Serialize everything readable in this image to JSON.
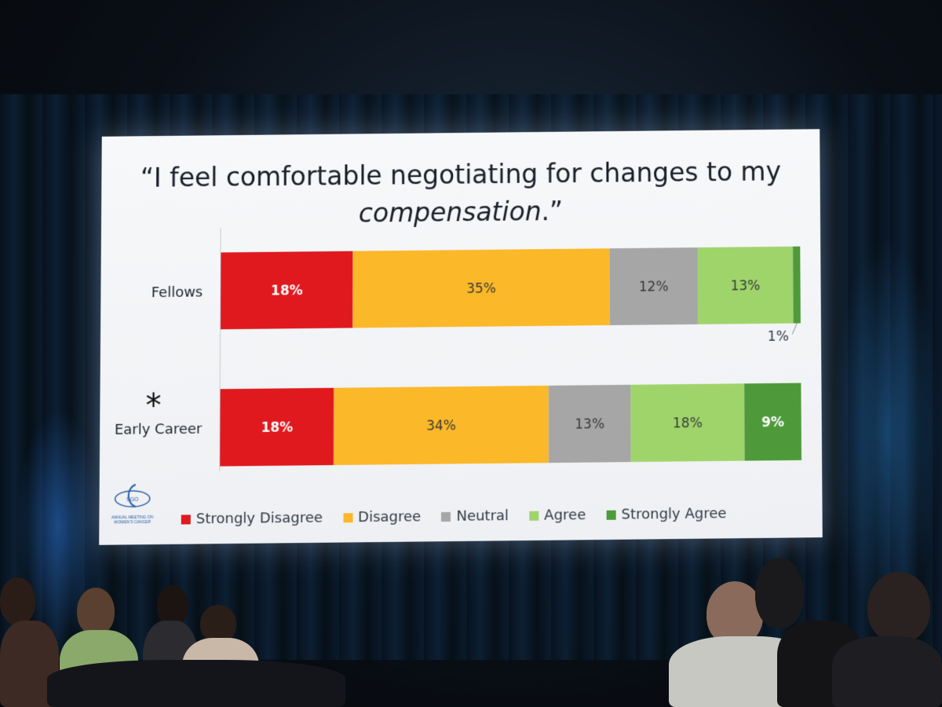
{
  "slide": {
    "title_line1": "“I feel comfortable negotiating for changes to my",
    "title_line2_italic": "compensation",
    "title_line2_end": ".”",
    "logo_text": "SGO",
    "logo_caption": "ANNUAL MEETING ON WOMEN'S CANCER"
  },
  "chart_data": {
    "type": "bar",
    "orientation": "horizontal-stacked-100",
    "title": "“I feel comfortable negotiating for changes to my compensation.”",
    "categories": [
      "Fellows",
      "Early Career"
    ],
    "category_marks": [
      "",
      "*"
    ],
    "series": [
      {
        "name": "Strongly Disagree",
        "color": "#e0191e",
        "values": [
          18,
          18
        ],
        "label_color": "#ffffff"
      },
      {
        "name": "Disagree",
        "color": "#fbb829",
        "values": [
          35,
          34
        ],
        "label_color": "#3a3a3a"
      },
      {
        "name": "Neutral",
        "color": "#a6a6a6",
        "values": [
          12,
          13
        ],
        "label_color": "#3a3a3a"
      },
      {
        "name": "Agree",
        "color": "#9fd46b",
        "values": [
          13,
          18
        ],
        "label_color": "#3a3a3a"
      },
      {
        "name": "Strongly Agree",
        "color": "#4e9a3a",
        "values": [
          1,
          9
        ],
        "label_color": "#ffffff"
      }
    ],
    "labels": [
      [
        "18%",
        "35%",
        "12%",
        "13%",
        "1%"
      ],
      [
        "18%",
        "34%",
        "13%",
        "18%",
        "9%"
      ]
    ],
    "legend_position": "bottom",
    "grid": false
  }
}
